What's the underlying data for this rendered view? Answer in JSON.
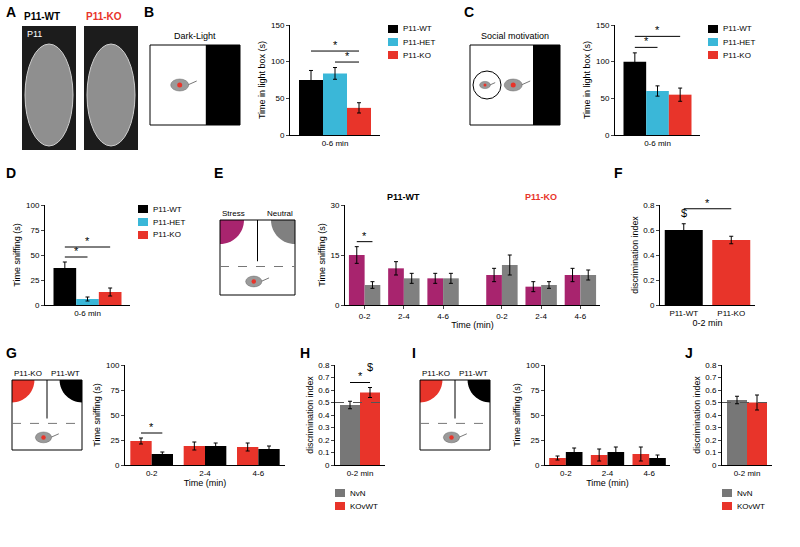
{
  "chart_data": [
    {
      "panel": "A",
      "type": "image",
      "labels": [
        {
          "text": "P11-WT",
          "color": "#000000"
        },
        {
          "text": "P11-KO",
          "color": "#e8342a"
        }
      ],
      "inset_label": "P11"
    },
    {
      "panel": "B",
      "type": "bar",
      "schematic": {
        "type": "dark-light",
        "title": "Dark-Light"
      },
      "categories": [
        "0-6 min"
      ],
      "series": [
        {
          "name": "P11-WT",
          "color": "#000000",
          "values": [
            75
          ],
          "errors": [
            13
          ]
        },
        {
          "name": "P11-HET",
          "color": "#3ab7d8",
          "values": [
            84
          ],
          "errors": [
            8
          ]
        },
        {
          "name": "P11-KO",
          "color": "#e8342a",
          "values": [
            37
          ],
          "errors": [
            7
          ]
        }
      ],
      "y_label": "Time in light box (s)",
      "ylim": [
        0,
        150
      ],
      "yticks": [
        0,
        50,
        100,
        150
      ],
      "legend": "right",
      "significance": [
        {
          "text": "*",
          "from": "P11-HET",
          "to": "P11-KO"
        },
        {
          "text": "*",
          "from": "P11-WT",
          "to": "P11-KO"
        }
      ]
    },
    {
      "panel": "C",
      "type": "bar",
      "schematic": {
        "type": "social",
        "title": "Social motivation"
      },
      "categories": [
        "0-6 min"
      ],
      "series": [
        {
          "name": "P11-WT",
          "color": "#000000",
          "values": [
            100
          ],
          "errors": [
            12
          ]
        },
        {
          "name": "P11-HET",
          "color": "#3ab7d8",
          "values": [
            60
          ],
          "errors": [
            7
          ]
        },
        {
          "name": "P11-KO",
          "color": "#e8342a",
          "values": [
            55
          ],
          "errors": [
            9
          ]
        }
      ],
      "y_label": "Time in light box (s)",
      "ylim": [
        0,
        150
      ],
      "yticks": [
        0,
        50,
        100,
        150
      ],
      "legend": "right",
      "significance": [
        {
          "text": "*",
          "from": "P11-WT",
          "to": "P11-HET"
        },
        {
          "text": "*",
          "from": "P11-WT",
          "to": "P11-KO"
        }
      ]
    },
    {
      "panel": "D",
      "type": "bar",
      "categories": [
        "0-6 min"
      ],
      "series": [
        {
          "name": "P11-WT",
          "color": "#000000",
          "values": [
            37
          ],
          "errors": [
            6
          ]
        },
        {
          "name": "P11-HET",
          "color": "#3ab7d8",
          "values": [
            6
          ],
          "errors": [
            2
          ]
        },
        {
          "name": "P11-KO",
          "color": "#e8342a",
          "values": [
            13
          ],
          "errors": [
            4
          ]
        }
      ],
      "y_label": "Time sniffing (s)",
      "ylim": [
        0,
        100
      ],
      "yticks": [
        0,
        25,
        50,
        75,
        100
      ],
      "legend": "right",
      "significance": [
        {
          "text": "*",
          "from": "P11-WT",
          "to": "P11-HET"
        },
        {
          "text": "*",
          "from": "P11-WT",
          "to": "P11-KO"
        }
      ]
    },
    {
      "panel": "E",
      "type": "bar",
      "schematic": {
        "type": "corners"
      },
      "categories": [
        "0-2",
        "2-4",
        "4-6"
      ],
      "groups": [
        {
          "name": "P11-WT",
          "color": "#000000",
          "series": [
            {
              "name": "Stress",
              "color": "#a8246e",
              "values": [
                15,
                11,
                8
              ],
              "errors": [
                2.5,
                2,
                1.5
              ]
            },
            {
              "name": "Neutral",
              "color": "#808080",
              "values": [
                6,
                8,
                8
              ],
              "errors": [
                1,
                1.5,
                1.5
              ]
            }
          ]
        },
        {
          "name": "P11-KO",
          "color": "#e8342a",
          "series": [
            {
              "name": "Stress",
              "color": "#a8246e",
              "values": [
                9,
                5.5,
                9
              ],
              "errors": [
                2,
                1.5,
                2
              ]
            },
            {
              "name": "Neutral",
              "color": "#808080",
              "values": [
                12,
                6,
                9
              ],
              "errors": [
                3,
                1,
                1.5
              ]
            }
          ]
        }
      ],
      "x_label": "Time (min)",
      "y_label": "Time sniffing (s)",
      "ylim": [
        0,
        30
      ],
      "yticks": [
        0,
        15,
        30
      ],
      "significance": [
        {
          "text": "*",
          "group": "P11-WT",
          "category": "0-2"
        }
      ]
    },
    {
      "panel": "F",
      "type": "bar",
      "categories": [
        "P11-WT",
        "P11-KO"
      ],
      "values": [
        0.6,
        0.52
      ],
      "errors": [
        0.05,
        0.03
      ],
      "colors": [
        "#000000",
        "#e8342a"
      ],
      "x_label": "0-2 min",
      "y_label": "discrimination index",
      "ylim": [
        0,
        0.8
      ],
      "yticks": [
        0,
        0.2,
        0.4,
        0.6,
        0.8
      ],
      "significance": [
        {
          "text": "$",
          "at": "P11-WT"
        },
        {
          "text": "*",
          "from": "P11-WT",
          "to": "P11-KO"
        }
      ]
    },
    {
      "panel": "G",
      "type": "bar",
      "schematic": {
        "type": "corners"
      },
      "categories": [
        "0-2",
        "2-4",
        "4-6"
      ],
      "series": [
        {
          "name": "P11-KO",
          "color": "#e8342a",
          "values": [
            24,
            19,
            18
          ],
          "errors": [
            3,
            4,
            4
          ]
        },
        {
          "name": "P11-WT",
          "color": "#000000",
          "values": [
            11,
            19,
            16
          ],
          "errors": [
            2,
            3,
            3
          ]
        }
      ],
      "x_label": "Time (min)",
      "y_label": "Time sniffing (s)",
      "ylim": [
        0,
        100
      ],
      "yticks": [
        0,
        25,
        50,
        75,
        100
      ],
      "significance": [
        {
          "text": "*",
          "category": "0-2"
        }
      ]
    },
    {
      "panel": "H",
      "type": "bar",
      "categories": [
        "0-2 min"
      ],
      "series": [
        {
          "name": "NvN",
          "color": "#777777",
          "values": [
            0.48
          ],
          "errors": [
            0.03
          ]
        },
        {
          "name": "KOvWT",
          "color": "#e8342a",
          "values": [
            0.58
          ],
          "errors": [
            0.04
          ]
        }
      ],
      "y_label": "discrimination index",
      "ylim": [
        0,
        0.8
      ],
      "yticks": [
        0,
        0.1,
        0.2,
        0.3,
        0.4,
        0.5,
        0.6,
        0.7,
        0.8
      ],
      "chance_level": 0.5,
      "legend": "bottom",
      "significance": [
        {
          "text": "*",
          "from": "NvN",
          "to": "KOvWT"
        },
        {
          "text": "$",
          "at": "KOvWT"
        }
      ]
    },
    {
      "panel": "I",
      "type": "bar",
      "schematic": {
        "type": "corners"
      },
      "categories": [
        "0-2",
        "2-4",
        "4-6"
      ],
      "series": [
        {
          "name": "P11-KO",
          "color": "#e8342a",
          "values": [
            7,
            10,
            11
          ],
          "errors": [
            2,
            6,
            7
          ]
        },
        {
          "name": "P11-WT",
          "color": "#000000",
          "values": [
            13,
            13,
            7
          ],
          "errors": [
            4,
            5,
            3
          ]
        }
      ],
      "x_label": "Time (min)",
      "y_label": "Time sniffing (s)",
      "ylim": [
        0,
        100
      ],
      "yticks": [
        0,
        25,
        50,
        75,
        100
      ]
    },
    {
      "panel": "J",
      "type": "bar",
      "categories": [
        "0-2 min"
      ],
      "series": [
        {
          "name": "NvN",
          "color": "#777777",
          "values": [
            0.52
          ],
          "errors": [
            0.03
          ]
        },
        {
          "name": "KOvWT",
          "color": "#e8342a",
          "values": [
            0.5
          ],
          "errors": [
            0.06
          ]
        }
      ],
      "y_label": "discrimination index",
      "ylim": [
        0,
        0.8
      ],
      "yticks": [
        0,
        0.1,
        0.2,
        0.3,
        0.4,
        0.5,
        0.6,
        0.7,
        0.8
      ],
      "chance_level": 0.5,
      "legend": "bottom"
    }
  ]
}
